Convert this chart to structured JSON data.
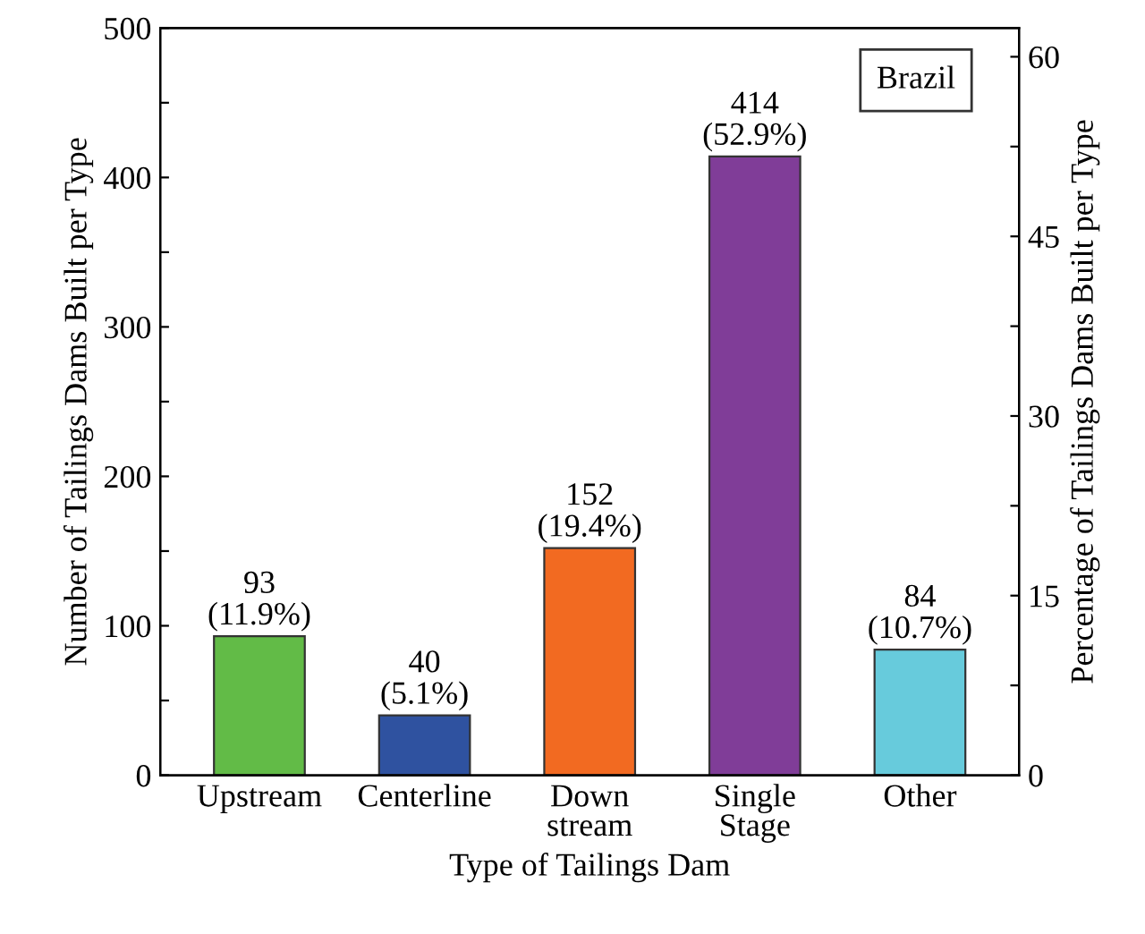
{
  "chart_data": {
    "type": "bar",
    "xlabel": "Type of Tailings Dam",
    "ylabel": "Number of Tailings Dams Built per Type",
    "y2label": "Percentage of Tailings Dams Built per Type",
    "categories": [
      "Upstream",
      "Centerline",
      "Down\nstream",
      "Single\nStage",
      "Other"
    ],
    "values": [
      93,
      40,
      152,
      414,
      84
    ],
    "colors": [
      "#62bb47",
      "#2f52a0",
      "#f26a21",
      "#803d98",
      "#67cbdc"
    ],
    "value_labels": [
      "93\n(11.9%)",
      "40\n(5.1%)",
      "152\n(19.4%)",
      "414\n(52.9%)",
      "84\n(10.7%)"
    ],
    "ylim": [
      0,
      500
    ],
    "yticks": [
      0,
      {
        "value": 50,
        "label": null
      },
      100,
      {
        "value": 150,
        "label": null
      },
      200,
      {
        "value": 250,
        "label": null
      },
      300,
      {
        "value": 350,
        "label": null
      },
      400,
      {
        "value": 450,
        "label": null
      },
      500
    ],
    "y2lim": [
      0,
      62.4
    ],
    "y2ticks": [
      0,
      {
        "value": 7.5,
        "label": null
      },
      15,
      {
        "value": 22.5,
        "label": null
      },
      30,
      {
        "value": 37.5,
        "label": null
      },
      45,
      {
        "value": 52.5,
        "label": null
      },
      60
    ],
    "annotations": [
      "Brazil"
    ],
    "grid": false
  }
}
